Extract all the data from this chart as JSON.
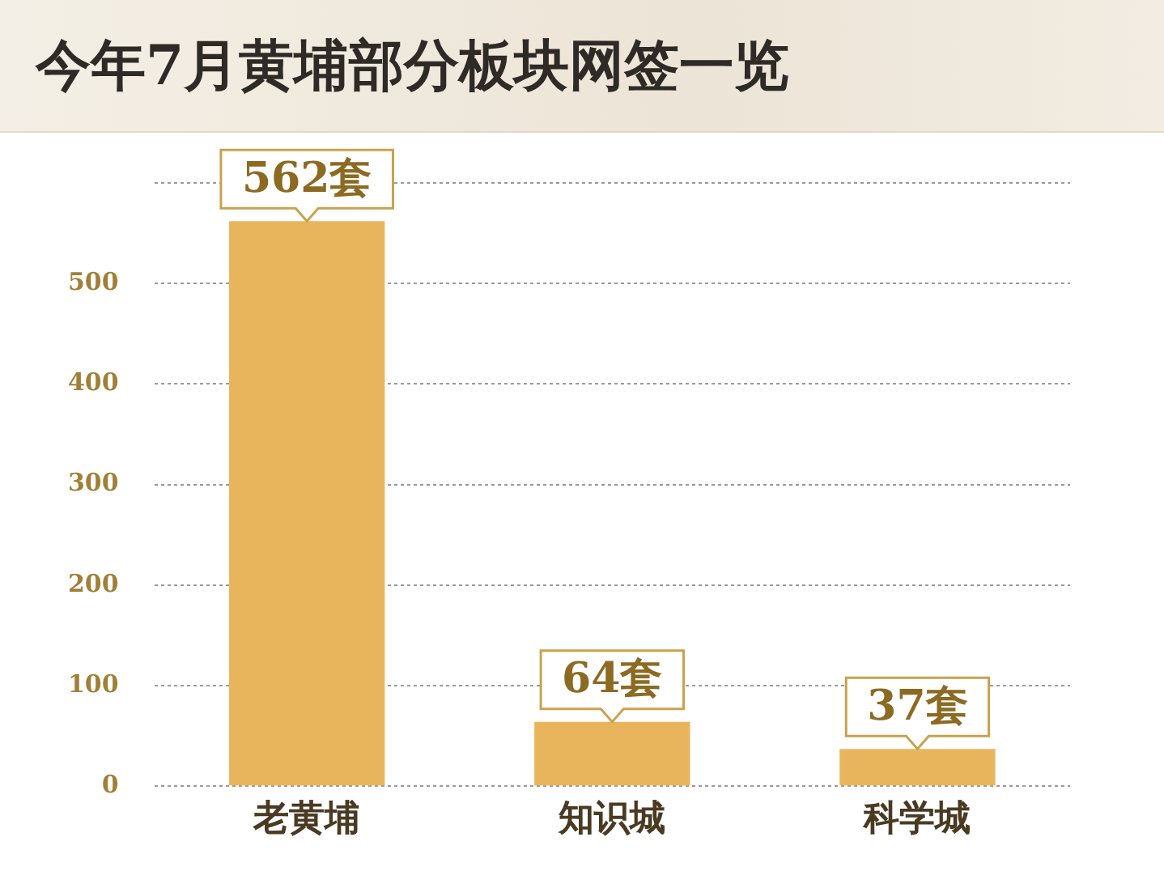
{
  "chart_data": {
    "type": "bar",
    "title": "今年7月黄埔部分板块网签一览",
    "categories": [
      "老黄埔",
      "知识城",
      "科学城"
    ],
    "values": [
      562,
      64,
      37
    ],
    "value_labels": [
      "562套",
      "64套",
      "37套"
    ],
    "color": "#e9b55c",
    "ylim": [
      0,
      600
    ],
    "yticks": [
      0,
      100,
      200,
      300,
      400,
      500,
      {
        "value": 600,
        "label": null
      }
    ],
    "grid": "y"
  }
}
